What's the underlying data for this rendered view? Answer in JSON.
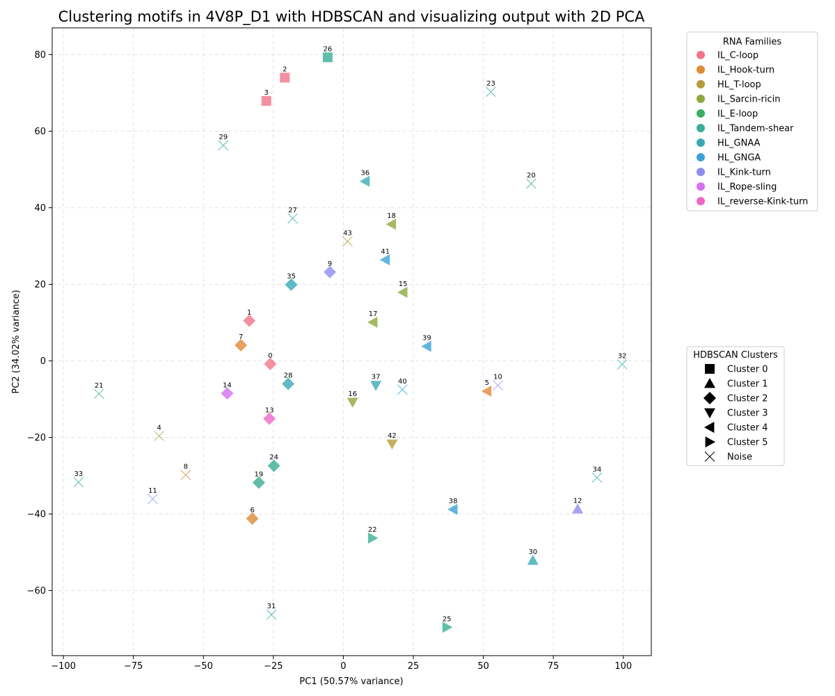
{
  "chart_data": {
    "type": "scatter",
    "title": "Clustering motifs in 4V8P_D1 with HDBSCAN and visualizing output with 2D PCA",
    "xlabel": "PC1 (50.57% variance)",
    "ylabel": "PC2 (34.02% variance)",
    "xlim": [
      -104,
      110
    ],
    "ylim": [
      -77,
      87
    ],
    "xticks": [
      -100,
      -75,
      -50,
      -25,
      0,
      25,
      50,
      75,
      100
    ],
    "yticks": [
      -60,
      -40,
      -20,
      0,
      20,
      40,
      60,
      80
    ],
    "grid": true,
    "families": [
      {
        "name": "IL_C-loop",
        "color": "#f0758a"
      },
      {
        "name": "IL_Hook-turn",
        "color": "#de8a36"
      },
      {
        "name": "HL_T-loop",
        "color": "#b59c38"
      },
      {
        "name": "IL_Sarcin-ricin",
        "color": "#8fa83e"
      },
      {
        "name": "IL_E-loop",
        "color": "#3aae62"
      },
      {
        "name": "IL_Tandem-shear",
        "color": "#3aae96"
      },
      {
        "name": "HL_GNAA",
        "color": "#38aab5"
      },
      {
        "name": "HL_GNGA",
        "color": "#3ba3d9"
      },
      {
        "name": "IL_Kink-turn",
        "color": "#8c8ff0"
      },
      {
        "name": "IL_Rope-sling",
        "color": "#d66ff0"
      },
      {
        "name": "IL_reverse-Kink-turn",
        "color": "#ee66c8"
      }
    ],
    "clusters": [
      {
        "name": "Cluster 0",
        "marker": "square"
      },
      {
        "name": "Cluster 1",
        "marker": "triangle-up"
      },
      {
        "name": "Cluster 2",
        "marker": "diamond"
      },
      {
        "name": "Cluster 3",
        "marker": "triangle-down"
      },
      {
        "name": "Cluster 4",
        "marker": "triangle-left"
      },
      {
        "name": "Cluster 5",
        "marker": "triangle-right"
      },
      {
        "name": "Noise",
        "marker": "x"
      }
    ],
    "legend_families_title": "RNA Families",
    "legend_clusters_title": "HDBSCAN Clusters",
    "points": [
      {
        "id": "0",
        "x": -26.1,
        "y": -0.8,
        "family": "IL_C-loop",
        "cluster": "Cluster 2"
      },
      {
        "id": "1",
        "x": -33.6,
        "y": 10.5,
        "family": "IL_C-loop",
        "cluster": "Cluster 2"
      },
      {
        "id": "2",
        "x": -20.9,
        "y": 74.0,
        "family": "IL_C-loop",
        "cluster": "Cluster 0"
      },
      {
        "id": "3",
        "x": -27.5,
        "y": 67.9,
        "family": "IL_C-loop",
        "cluster": "Cluster 0"
      },
      {
        "id": "4",
        "x": -65.8,
        "y": -19.6,
        "family": "IL_Sarcin-ricin",
        "cluster": "Noise"
      },
      {
        "id": "5",
        "x": 51.3,
        "y": -7.9,
        "family": "IL_Hook-turn",
        "cluster": "Cluster 4"
      },
      {
        "id": "6",
        "x": -32.5,
        "y": -41.2,
        "family": "IL_Hook-turn",
        "cluster": "Cluster 2"
      },
      {
        "id": "7",
        "x": -36.6,
        "y": 4.1,
        "family": "IL_Hook-turn",
        "cluster": "Cluster 2"
      },
      {
        "id": "8",
        "x": -56.3,
        "y": -29.8,
        "family": "IL_Hook-turn",
        "cluster": "Noise"
      },
      {
        "id": "9",
        "x": -4.8,
        "y": 23.2,
        "family": "IL_Kink-turn",
        "cluster": "Cluster 2"
      },
      {
        "id": "10",
        "x": 55.2,
        "y": -6.4,
        "family": "IL_Kink-turn",
        "cluster": "Noise"
      },
      {
        "id": "11",
        "x": -68.1,
        "y": -36.1,
        "family": "IL_Kink-turn",
        "cluster": "Noise"
      },
      {
        "id": "12",
        "x": 83.7,
        "y": -38.7,
        "family": "IL_Kink-turn",
        "cluster": "Cluster 1"
      },
      {
        "id": "13",
        "x": -26.4,
        "y": -15.1,
        "family": "IL_reverse-Kink-turn",
        "cluster": "Cluster 2"
      },
      {
        "id": "14",
        "x": -41.5,
        "y": -8.5,
        "family": "IL_Rope-sling",
        "cluster": "Cluster 2"
      },
      {
        "id": "15",
        "x": 21.3,
        "y": 17.9,
        "family": "IL_Sarcin-ricin",
        "cluster": "Cluster 4"
      },
      {
        "id": "16",
        "x": 3.3,
        "y": -10.8,
        "family": "IL_Sarcin-ricin",
        "cluster": "Cluster 3"
      },
      {
        "id": "17",
        "x": 10.6,
        "y": 10.1,
        "family": "IL_Sarcin-ricin",
        "cluster": "Cluster 4"
      },
      {
        "id": "18",
        "x": 17.2,
        "y": 35.7,
        "family": "IL_Sarcin-ricin",
        "cluster": "Cluster 4"
      },
      {
        "id": "19",
        "x": -30.2,
        "y": -31.8,
        "family": "IL_Tandem-shear",
        "cluster": "Cluster 2"
      },
      {
        "id": "20",
        "x": 67.1,
        "y": 46.3,
        "family": "IL_Tandem-shear",
        "cluster": "Noise"
      },
      {
        "id": "21",
        "x": -87.3,
        "y": -8.6,
        "family": "IL_Tandem-shear",
        "cluster": "Noise"
      },
      {
        "id": "22",
        "x": 10.4,
        "y": -46.3,
        "family": "IL_Tandem-shear",
        "cluster": "Cluster 5"
      },
      {
        "id": "23",
        "x": 52.7,
        "y": 70.3,
        "family": "IL_Tandem-shear",
        "cluster": "Noise"
      },
      {
        "id": "24",
        "x": -24.8,
        "y": -27.4,
        "family": "IL_Tandem-shear",
        "cluster": "Cluster 2"
      },
      {
        "id": "25",
        "x": 37.0,
        "y": -69.6,
        "family": "IL_Tandem-shear",
        "cluster": "Cluster 5"
      },
      {
        "id": "26",
        "x": -5.6,
        "y": 79.3,
        "family": "IL_Tandem-shear",
        "cluster": "Cluster 0"
      },
      {
        "id": "27",
        "x": -18.1,
        "y": 37.2,
        "family": "HL_GNAA",
        "cluster": "Noise"
      },
      {
        "id": "28",
        "x": -19.7,
        "y": -6.0,
        "family": "HL_GNAA",
        "cluster": "Cluster 2"
      },
      {
        "id": "29",
        "x": -42.9,
        "y": 56.3,
        "family": "HL_GNAA",
        "cluster": "Noise"
      },
      {
        "id": "30",
        "x": 67.7,
        "y": -52.1,
        "family": "HL_GNAA",
        "cluster": "Cluster 1"
      },
      {
        "id": "31",
        "x": -25.7,
        "y": -66.3,
        "family": "HL_GNAA",
        "cluster": "Noise"
      },
      {
        "id": "32",
        "x": 99.6,
        "y": -0.9,
        "family": "HL_GNAA",
        "cluster": "Noise"
      },
      {
        "id": "33",
        "x": -94.6,
        "y": -31.7,
        "family": "HL_GNAA",
        "cluster": "Noise"
      },
      {
        "id": "34",
        "x": 90.6,
        "y": -30.5,
        "family": "HL_GNAA",
        "cluster": "Noise"
      },
      {
        "id": "35",
        "x": -18.6,
        "y": 19.9,
        "family": "HL_GNAA",
        "cluster": "Cluster 2"
      },
      {
        "id": "36",
        "x": 7.8,
        "y": 46.9,
        "family": "HL_GNAA",
        "cluster": "Cluster 4"
      },
      {
        "id": "37",
        "x": 11.6,
        "y": -6.4,
        "family": "HL_GNAA",
        "cluster": "Cluster 3"
      },
      {
        "id": "38",
        "x": 39.2,
        "y": -38.8,
        "family": "HL_GNGA",
        "cluster": "Cluster 4"
      },
      {
        "id": "39",
        "x": 29.8,
        "y": 3.8,
        "family": "HL_GNGA",
        "cluster": "Cluster 4"
      },
      {
        "id": "40",
        "x": 21.1,
        "y": -7.5,
        "family": "HL_GNGA",
        "cluster": "Noise"
      },
      {
        "id": "41",
        "x": 15.0,
        "y": 26.4,
        "family": "HL_GNGA",
        "cluster": "Cluster 4"
      },
      {
        "id": "42",
        "x": 17.4,
        "y": -21.7,
        "family": "HL_T-loop",
        "cluster": "Cluster 3"
      },
      {
        "id": "43",
        "x": 1.5,
        "y": 31.2,
        "family": "HL_T-loop",
        "cluster": "Noise"
      }
    ]
  }
}
